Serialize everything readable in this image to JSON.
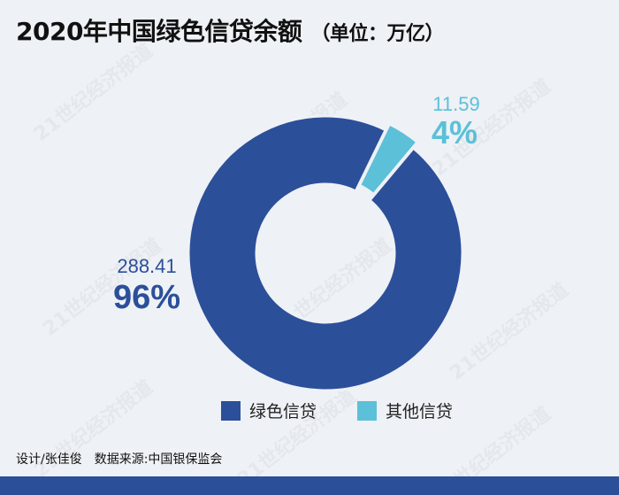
{
  "header": {
    "title": "2020年中国绿色信贷余额",
    "unit": "（单位：万亿）"
  },
  "chart_data": {
    "type": "pie",
    "variant": "donut",
    "categories": [
      "绿色信贷",
      "其他信贷"
    ],
    "values": [
      288.41,
      11.59
    ],
    "percent_labels": [
      "96%",
      "4%"
    ],
    "value_labels": [
      "288.41",
      "11.59"
    ],
    "colors": [
      "#2c4f9a",
      "#5bc0d8"
    ],
    "legend_position": "bottom"
  },
  "legend": {
    "items": [
      {
        "label": "绿色信贷",
        "color": "#2c4f9a"
      },
      {
        "label": "其他信贷",
        "color": "#5bc0d8"
      }
    ]
  },
  "footer": {
    "designer": "设计/张佳俊",
    "source": "数据来源:中国银保监会"
  },
  "watermark": "21世纪经济报道"
}
